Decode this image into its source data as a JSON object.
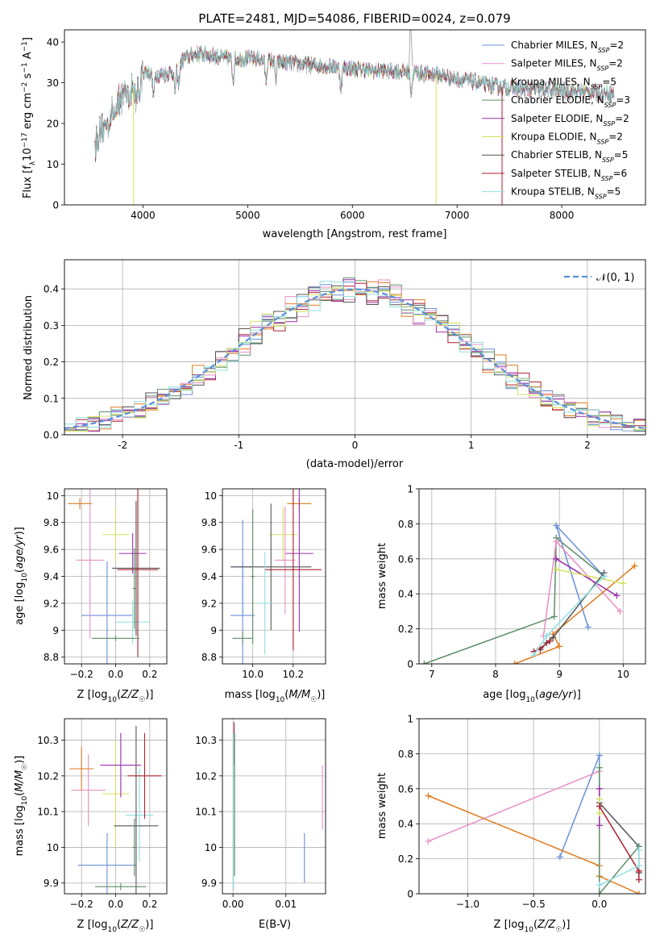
{
  "figure_title": "PLATE=2481, MJD=54086, FIBERID=0024, z=0.079",
  "colors": [
    "#6a8fd8",
    "#e890c4",
    "#8ecbdc",
    "#5c8d6a",
    "#9b2fae",
    "#d4e15c",
    "#555555",
    "#b0202e",
    "#8fe0e0",
    "#e07b1e"
  ],
  "chart_data": [
    {
      "id": "spectrum",
      "type": "line",
      "title": "PLATE=2481, MJD=54086, FIBERID=0024, z=0.079",
      "xlabel": "wavelength [Angstrom, rest frame]",
      "ylabel": "Flux [f_λ10^-17 erg cm^-2 s^-1 A^-1]",
      "xlim": [
        3250,
        8800
      ],
      "ylim": [
        0,
        43
      ],
      "xticks": [
        4000,
        5000,
        6000,
        7000,
        8000
      ],
      "yticks": [
        0,
        10,
        20,
        30,
        40
      ],
      "grid": false,
      "legend_position": "top-right",
      "continuum_knots": {
        "x": [
          3540,
          3600,
          3700,
          3800,
          3900,
          4000,
          4100,
          4200,
          4300,
          4400,
          4500,
          4600,
          4700,
          4800,
          5000,
          5200,
          5500,
          5800,
          6000,
          6200,
          6400,
          6600,
          6800,
          7000,
          7200,
          7400,
          7600,
          7800,
          8000,
          8200,
          8400,
          8500
        ],
        "y": [
          15,
          18,
          22,
          27,
          28,
          33,
          32,
          32,
          33,
          36,
          37,
          37,
          36.5,
          36,
          36,
          35.5,
          34.5,
          34,
          33.5,
          33,
          33,
          32.5,
          32,
          31,
          30,
          29,
          28.5,
          28.3,
          28,
          27.8,
          27.5,
          27.3
        ]
      },
      "series": [
        {
          "name": "Chabrier MILES, N_SSP=2",
          "color": "#6a8fd8"
        },
        {
          "name": "Salpeter MILES, N_SSP=2",
          "color": "#e890c4"
        },
        {
          "name": "Kroupa MILES, N_SSP=5",
          "color": "#8ecbdc"
        },
        {
          "name": "Chabrier ELODIE, N_SSP=3",
          "color": "#5c8d6a"
        },
        {
          "name": "Salpeter ELODIE, N_SSP=2",
          "color": "#9b2fae"
        },
        {
          "name": "Kroupa ELODIE, N_SSP=2",
          "color": "#d4e15c"
        },
        {
          "name": "Chabrier STELIB, N_SSP=5",
          "color": "#555555"
        },
        {
          "name": "Salpeter STELIB, N_SSP=6",
          "color": "#b0202e"
        },
        {
          "name": "Kroupa STELIB, N_SSP=5",
          "color": "#8fe0e0"
        }
      ]
    },
    {
      "id": "residuals",
      "type": "histogram",
      "xlabel": "(data-model)/error",
      "ylabel": "Normed distribution",
      "xlim": [
        -2.5,
        2.5
      ],
      "ylim": [
        0,
        0.48
      ],
      "xticks": [
        -2,
        -1,
        0,
        1,
        2
      ],
      "yticks": [
        0.0,
        0.1,
        0.2,
        0.3,
        0.4
      ],
      "grid": true,
      "legend_position": "top-right",
      "reference_label": "𝒩(0, 1)",
      "reference_color": "#5b8fd8",
      "bin_width": 0.1,
      "bin_start": -2.5,
      "bin_count": 50,
      "series_colors": [
        "#6a8fd8",
        "#e07b1e",
        "#5c8d6a",
        "#b0202e",
        "#9b2fae",
        "#e890c4",
        "#555555",
        "#d4e15c",
        "#8fe0e0"
      ]
    },
    {
      "id": "age_vs_Z",
      "type": "scatter",
      "xlabel": "Z [log10(Z/Z☉)]",
      "ylabel": "age [log10(age/yr)]",
      "xlim": [
        -0.3,
        0.3
      ],
      "ylim": [
        8.75,
        10.05
      ],
      "xticks": [
        -0.2,
        0.0,
        0.2
      ],
      "xtick_labels": [
        "−0.2",
        "0.0",
        "0.2"
      ],
      "yticks": [
        8.8,
        9.0,
        9.2,
        9.4,
        9.6,
        9.8,
        10.0
      ],
      "grid": true,
      "points": [
        {
          "x": -0.05,
          "y": 9.11,
          "xerr": 0.15,
          "yerr": 0.4,
          "color": "#6a8fd8"
        },
        {
          "x": -0.15,
          "y": 9.52,
          "xerr": 0.08,
          "yerr": 0.58,
          "color": "#e890c4"
        },
        {
          "x": -0.21,
          "y": 9.94,
          "xerr": 0.07,
          "yerr": 0.04,
          "color": "#e07b1e"
        },
        {
          "x": 0.0,
          "y": 9.71,
          "xerr": 0.08,
          "yerr": 0.2,
          "color": "#d4e15c"
        },
        {
          "x": 0.1,
          "y": 9.57,
          "xerr": 0.08,
          "yerr": 0.15,
          "color": "#9b2fae"
        },
        {
          "x": 0.1,
          "y": 9.06,
          "xerr": 0.1,
          "yerr": 0.16,
          "color": "#8fe0e0"
        },
        {
          "x": 0.12,
          "y": 9.46,
          "xerr": 0.14,
          "yerr": 0.5,
          "color": "#555555"
        },
        {
          "x": 0.13,
          "y": 9.45,
          "xerr": 0.12,
          "yerr": 0.65,
          "color": "#b0202e"
        },
        {
          "x": 0.0,
          "y": 8.94,
          "xerr": 0.14,
          "yerr": 0.02,
          "color": "#5c8d6a"
        },
        {
          "x": 0.11,
          "y": 9.31,
          "xerr": 0.01,
          "yerr": 0.3,
          "color": "#5c8d6a"
        }
      ]
    },
    {
      "id": "age_vs_mass",
      "type": "scatter",
      "xlabel": "mass [log10(M/M☉)]",
      "ylabel": "",
      "xlim": [
        9.85,
        10.36
      ],
      "ylim": [
        8.75,
        10.05
      ],
      "xticks": [
        10.0,
        10.2
      ],
      "xtick_labels": [
        "10.0",
        "10.2"
      ],
      "yticks": [
        8.8,
        9.0,
        9.2,
        9.4,
        9.6,
        9.8,
        10.0
      ],
      "grid": true,
      "points": [
        {
          "x": 9.95,
          "y": 9.11,
          "xerr": 0.06,
          "yerr": 0.4,
          "color": "#6a8fd8"
        },
        {
          "x": 9.95,
          "y": 9.47,
          "xerr": 0.05,
          "yerr": 0.35,
          "color": "#6a8fd8"
        },
        {
          "x": 10.23,
          "y": 9.94,
          "xerr": 0.06,
          "yerr": 0.04,
          "color": "#e07b1e"
        },
        {
          "x": 10.15,
          "y": 9.71,
          "xerr": 0.07,
          "yerr": 0.2,
          "color": "#d4e15c"
        },
        {
          "x": 10.23,
          "y": 9.57,
          "xerr": 0.07,
          "yerr": 0.58,
          "color": "#9b2fae"
        },
        {
          "x": 10.16,
          "y": 9.52,
          "xerr": 0.05,
          "yerr": 0.4,
          "color": "#e890c4"
        },
        {
          "x": 10.09,
          "y": 9.47,
          "xerr": 0.2,
          "yerr": 0.47,
          "color": "#555555"
        },
        {
          "x": 10.2,
          "y": 9.45,
          "xerr": 0.14,
          "yerr": 0.6,
          "color": "#b0202e"
        },
        {
          "x": 10.06,
          "y": 9.2,
          "xerr": 0.04,
          "yerr": 0.38,
          "color": "#8fe0e0"
        },
        {
          "x": 9.95,
          "y": 8.94,
          "xerr": 0.05,
          "yerr": 0.05,
          "color": "#5c8d6a"
        },
        {
          "x": 10.0,
          "y": 9.4,
          "xerr": 0.01,
          "yerr": 0.5,
          "color": "#5c8d6a"
        }
      ]
    },
    {
      "id": "weight_vs_age",
      "type": "line",
      "xlabel": "age [log10(age/yr)]",
      "ylabel": "mass weight",
      "xlim": [
        6.8,
        10.35
      ],
      "ylim": [
        0,
        1.0
      ],
      "xticks": [
        7,
        8,
        9,
        10
      ],
      "yticks": [
        0.0,
        0.2,
        0.4,
        0.6,
        0.8,
        1.0
      ],
      "grid": true,
      "series": [
        {
          "color": "#5c8d6a",
          "x": [
            6.88,
            8.92,
            8.95,
            9.7
          ],
          "y": [
            0.0,
            0.27,
            0.72,
            0.5
          ]
        },
        {
          "color": "#6a8fd8",
          "x": [
            9.45,
            8.95,
            9.7
          ],
          "y": [
            0.21,
            0.79,
            0.5
          ]
        },
        {
          "color": "#e890c4",
          "x": [
            8.75,
            8.95,
            9.95
          ],
          "y": [
            0.16,
            0.7,
            0.3
          ]
        },
        {
          "color": "#e07b1e",
          "x": [
            8.3,
            9.0,
            8.9,
            10.18
          ],
          "y": [
            0.0,
            0.1,
            0.17,
            0.56
          ]
        },
        {
          "color": "#9b2fae",
          "x": [
            8.95,
            9.9
          ],
          "y": [
            0.6,
            0.39
          ]
        },
        {
          "color": "#d4e15c",
          "x": [
            8.95,
            10.0
          ],
          "y": [
            0.54,
            0.46
          ]
        },
        {
          "color": "#555555",
          "x": [
            8.7,
            8.8,
            8.9,
            9.7
          ],
          "y": [
            0.08,
            0.12,
            0.15,
            0.52
          ]
        },
        {
          "color": "#b0202e",
          "x": [
            8.6,
            8.7,
            8.85
          ],
          "y": [
            0.07,
            0.09,
            0.13
          ]
        },
        {
          "color": "#8fe0e0",
          "x": [
            8.6,
            8.8,
            9.7
          ],
          "y": [
            0.05,
            0.16,
            0.5
          ]
        }
      ]
    },
    {
      "id": "mass_vs_Z",
      "type": "scatter",
      "xlabel": "Z [log10(Z/Z☉)]",
      "ylabel": "mass [log10(M/M☉)]",
      "xlim": [
        -0.3,
        0.3
      ],
      "ylim": [
        9.87,
        10.36
      ],
      "xticks": [
        -0.2,
        0.0,
        0.2
      ],
      "xtick_labels": [
        "−0.2",
        "0.0",
        "0.2"
      ],
      "yticks": [
        9.9,
        10.0,
        10.1,
        10.2,
        10.3
      ],
      "grid": true,
      "points": [
        {
          "x": -0.05,
          "y": 9.95,
          "xerr": 0.17,
          "yerr": 0.09,
          "color": "#6a8fd8"
        },
        {
          "x": -0.16,
          "y": 10.16,
          "xerr": 0.1,
          "yerr": 0.1,
          "color": "#e890c4"
        },
        {
          "x": -0.2,
          "y": 10.22,
          "xerr": 0.07,
          "yerr": 0.06,
          "color": "#e07b1e"
        },
        {
          "x": 0.0,
          "y": 10.15,
          "xerr": 0.08,
          "yerr": 0.15,
          "color": "#d4e15c"
        },
        {
          "x": 0.03,
          "y": 10.23,
          "xerr": 0.12,
          "yerr": 0.09,
          "color": "#9b2fae"
        },
        {
          "x": 0.14,
          "y": 10.09,
          "xerr": 0.08,
          "yerr": 0.13,
          "color": "#8fe0e0"
        },
        {
          "x": 0.12,
          "y": 10.06,
          "xerr": 0.13,
          "yerr": 0.28,
          "color": "#555555"
        },
        {
          "x": 0.17,
          "y": 10.2,
          "xerr": 0.1,
          "yerr": 0.12,
          "color": "#b0202e"
        },
        {
          "x": 0.03,
          "y": 9.89,
          "xerr": 0.15,
          "yerr": 0.01,
          "color": "#5c8d6a"
        },
        {
          "x": 0.11,
          "y": 10.0,
          "xerr": 0.01,
          "yerr": 0.08,
          "color": "#5c8d6a"
        }
      ]
    },
    {
      "id": "mass_vs_ebv",
      "type": "scatter",
      "xlabel": "E(B-V)",
      "ylabel": "",
      "xlim": [
        -0.002,
        0.0175
      ],
      "ylim": [
        9.87,
        10.36
      ],
      "xticks": [
        0.0,
        0.01
      ],
      "xtick_labels": [
        "0.00",
        "0.01"
      ],
      "yticks": [
        9.9,
        10.0,
        10.1,
        10.2,
        10.3
      ],
      "grid": true,
      "points": [
        {
          "x": 0.0002,
          "y": 10.29,
          "xerr": 0,
          "yerr": 0.06,
          "color": "#b0202e"
        },
        {
          "x": 0.0001,
          "y": 10.1,
          "xerr": 0,
          "yerr": 0.22,
          "color": "#8fe0e0"
        },
        {
          "x": 0.0003,
          "y": 10.12,
          "xerr": 0,
          "yerr": 0.2,
          "color": "#5c8d6a"
        },
        {
          "x": 0.0135,
          "y": 9.97,
          "xerr": 0,
          "yerr": 0.07,
          "color": "#6a8fd8"
        },
        {
          "x": 0.0169,
          "y": 10.14,
          "xerr": 0,
          "yerr": 0.09,
          "color": "#e890c4"
        }
      ]
    },
    {
      "id": "weight_vs_Z",
      "type": "line",
      "xlabel": "Z [log10(Z/Z☉)]",
      "ylabel": "mass weight",
      "xlim": [
        -1.37,
        0.35
      ],
      "ylim": [
        0,
        1.0
      ],
      "xticks": [
        -1.0,
        -0.5,
        0.0
      ],
      "xtick_labels": [
        "−1.0",
        "−0.5",
        "0.0"
      ],
      "yticks": [
        0.0,
        0.2,
        0.4,
        0.6,
        0.8,
        1.0
      ],
      "grid": true,
      "series": [
        {
          "color": "#6a8fd8",
          "x": [
            -0.3,
            0.0,
            0.0
          ],
          "y": [
            0.21,
            0.79,
            0.5
          ]
        },
        {
          "color": "#e890c4",
          "x": [
            -1.3,
            0.0
          ],
          "y": [
            0.3,
            0.7
          ]
        },
        {
          "color": "#e07b1e",
          "x": [
            -1.3,
            0.0,
            0.0,
            0.3
          ],
          "y": [
            0.56,
            0.16,
            0.1,
            0.0
          ]
        },
        {
          "color": "#555555",
          "x": [
            0.0,
            0.3,
            0.3
          ],
          "y": [
            0.52,
            0.27,
            0.12
          ]
        },
        {
          "color": "#5c8d6a",
          "x": [
            0.0,
            0.0,
            0.3
          ],
          "y": [
            0.72,
            0.0,
            0.27
          ]
        },
        {
          "color": "#9b2fae",
          "x": [
            0.0,
            0.0
          ],
          "y": [
            0.6,
            0.39
          ]
        },
        {
          "color": "#d4e15c",
          "x": [
            0.0,
            0.0
          ],
          "y": [
            0.54,
            0.46
          ]
        },
        {
          "color": "#b0202e",
          "x": [
            0.0,
            0.3,
            0.3
          ],
          "y": [
            0.5,
            0.13,
            0.08
          ]
        },
        {
          "color": "#8fe0e0",
          "x": [
            0.0,
            0.3,
            0.3
          ],
          "y": [
            0.05,
            0.16,
            0.25
          ]
        }
      ]
    }
  ]
}
